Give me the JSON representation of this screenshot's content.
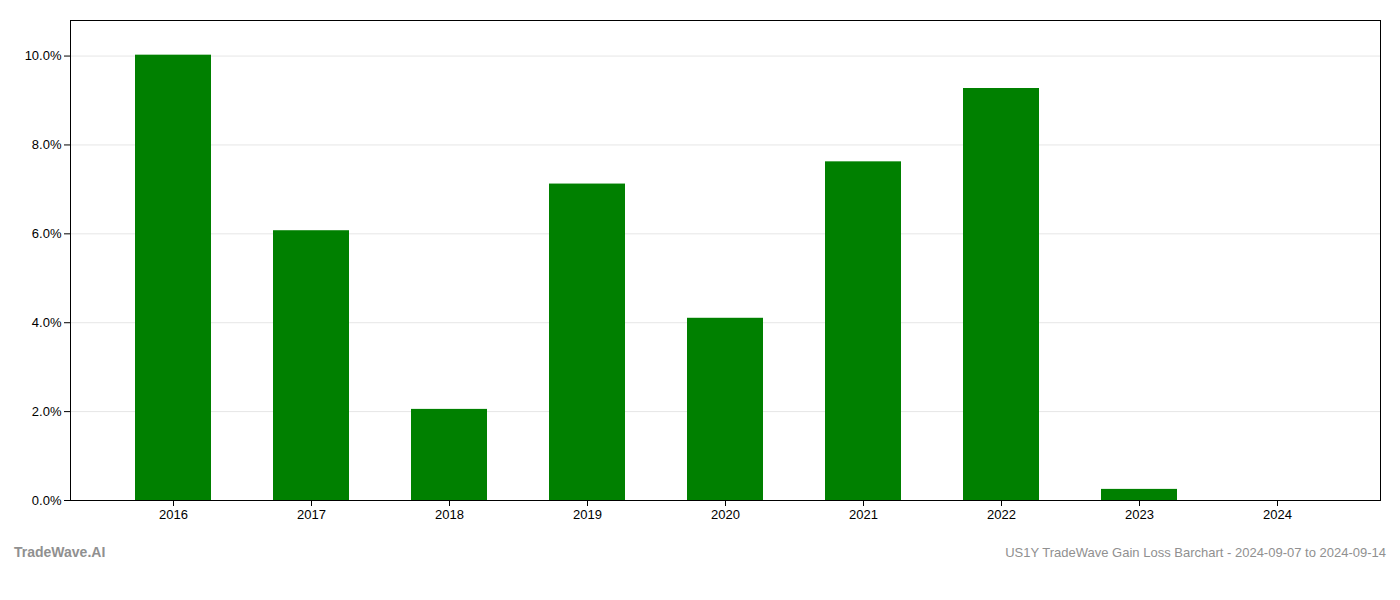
{
  "chart_data": {
    "type": "bar",
    "categories": [
      "2016",
      "2017",
      "2018",
      "2019",
      "2020",
      "2021",
      "2022",
      "2023",
      "2024"
    ],
    "values": [
      0.1002,
      0.0607,
      0.0205,
      0.0712,
      0.041,
      0.0762,
      0.0927,
      0.0025,
      0.0
    ],
    "color": "#008000",
    "ylim": [
      0,
      0.108
    ],
    "yticks": [
      {
        "value": 0.0,
        "label": "0.0%"
      },
      {
        "value": 0.02,
        "label": "2.0%"
      },
      {
        "value": 0.04,
        "label": "4.0%"
      },
      {
        "value": 0.06,
        "label": "6.0%"
      },
      {
        "value": 0.08,
        "label": "8.0%"
      },
      {
        "value": 0.1,
        "label": "10.0%"
      }
    ],
    "grid": true,
    "annotations": [
      "TradeWave.AI",
      "US1Y TradeWave Gain Loss Barchart - 2024-09-07 to 2024-09-14"
    ]
  }
}
